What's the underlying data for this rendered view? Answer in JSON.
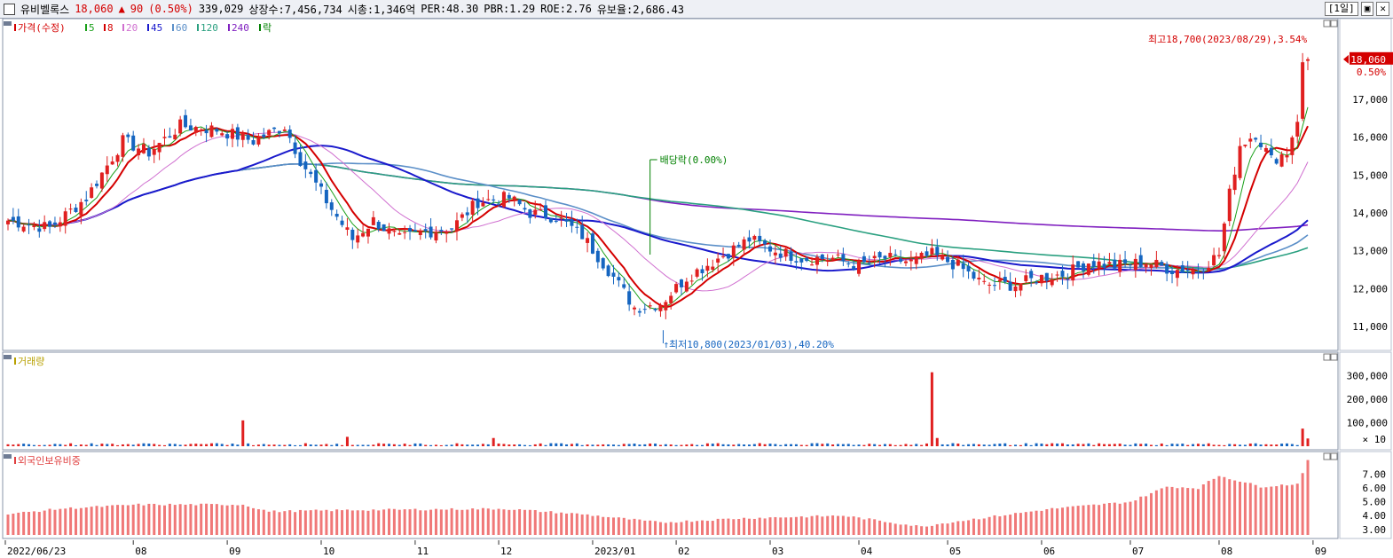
{
  "header": {
    "name": "유비벨록스",
    "price": "18,060",
    "change_arrow": "▲",
    "change": "90",
    "change_pct": "(0.50%)",
    "volume": "339,029",
    "listed": "상장수:7,456,734",
    "mcap": "시총:1,346억",
    "per": "PER:48.30",
    "pbr": "PBR:1.29",
    "roe": "ROE:2.76",
    "float": "유보율:2,686.43",
    "period": "[1일]"
  },
  "panels": {
    "price": {
      "legend": [
        {
          "label": "가격(수정)",
          "color": "#d40000"
        },
        {
          "label": "5",
          "color": "#1aa01a"
        },
        {
          "label": "8",
          "color": "#d40000"
        },
        {
          "label": "20",
          "color": "#d070d0"
        },
        {
          "label": "45",
          "color": "#1a1acc"
        },
        {
          "label": "60",
          "color": "#5b8fc8"
        },
        {
          "label": "120",
          "color": "#2aa080"
        },
        {
          "label": "240",
          "color": "#8020c0"
        },
        {
          "label": "락",
          "color": "#008000"
        }
      ],
      "high_note": "최고18,700(2023/08/29),3.54%",
      "low_note": "최저10,800(2023/01/03),40.20%",
      "dividend_note": "배당락(0.00%)",
      "current_label": "18,060",
      "current_pct": "0.50%",
      "yticks": [
        "17,000",
        "16,000",
        "15,000",
        "14,000",
        "13,000",
        "12,000",
        "11,000"
      ]
    },
    "volume": {
      "legend": "거래량",
      "yticks": [
        "300,000",
        "200,000",
        "100,000"
      ],
      "unit": "× 10"
    },
    "foreign": {
      "legend": "외국인보유비중",
      "yticks": [
        "7.00",
        "6.00",
        "5.00",
        "4.00",
        "3.00"
      ]
    }
  },
  "xaxis": [
    "2022/06/23",
    "08",
    "09",
    "10",
    "11",
    "12",
    "2023/01",
    "02",
    "03",
    "04",
    "05",
    "06",
    "07",
    "08",
    "09"
  ],
  "chart_data": {
    "type": "candlestick",
    "title": "유비벨록스",
    "price_range": [
      10600,
      18900
    ],
    "volume_range": [
      0,
      340000
    ],
    "foreign_range": [
      2.6,
      8.0
    ],
    "price_path": [
      [
        0,
        13800
      ],
      [
        8,
        13600
      ],
      [
        15,
        14400
      ],
      [
        22,
        15900
      ],
      [
        27,
        15600
      ],
      [
        33,
        16300
      ],
      [
        40,
        16200
      ],
      [
        47,
        15900
      ],
      [
        53,
        16300
      ],
      [
        56,
        15400
      ],
      [
        62,
        14100
      ],
      [
        66,
        13300
      ],
      [
        70,
        13800
      ],
      [
        75,
        13300
      ],
      [
        80,
        13500
      ],
      [
        85,
        13600
      ],
      [
        90,
        14300
      ],
      [
        96,
        14400
      ],
      [
        100,
        14000
      ],
      [
        105,
        13900
      ],
      [
        110,
        13400
      ],
      [
        115,
        12500
      ],
      [
        120,
        11500
      ],
      [
        125,
        11600
      ],
      [
        130,
        12300
      ],
      [
        136,
        12800
      ],
      [
        142,
        13300
      ],
      [
        147,
        13000
      ],
      [
        152,
        12800
      ],
      [
        158,
        12800
      ],
      [
        163,
        12600
      ],
      [
        168,
        12800
      ],
      [
        173,
        12700
      ],
      [
        177,
        12900
      ],
      [
        182,
        12600
      ],
      [
        187,
        12100
      ],
      [
        193,
        12100
      ],
      [
        198,
        12300
      ],
      [
        203,
        12400
      ],
      [
        207,
        12700
      ],
      [
        212,
        12600
      ],
      [
        218,
        12700
      ],
      [
        223,
        12500
      ],
      [
        228,
        12500
      ],
      [
        232,
        12900
      ],
      [
        234,
        14500
      ],
      [
        236,
        15800
      ],
      [
        239,
        16100
      ],
      [
        242,
        15400
      ],
      [
        245,
        15600
      ],
      [
        247,
        16500
      ],
      [
        248,
        17900
      ],
      [
        249,
        18060
      ]
    ],
    "volume_spikes": [
      {
        "day": 45,
        "value": 110000
      },
      {
        "day": 65,
        "value": 40000
      },
      {
        "day": 93,
        "value": 35000
      },
      {
        "day": 177,
        "value": 315000
      },
      {
        "day": 178,
        "value": 35000
      },
      {
        "day": 248,
        "value": 75000
      },
      {
        "day": 249,
        "value": 33000
      }
    ],
    "foreign_path": [
      [
        0,
        4.1
      ],
      [
        10,
        4.5
      ],
      [
        25,
        4.8
      ],
      [
        45,
        4.8
      ],
      [
        50,
        4.3
      ],
      [
        65,
        4.4
      ],
      [
        95,
        4.5
      ],
      [
        110,
        4.1
      ],
      [
        125,
        3.5
      ],
      [
        140,
        3.8
      ],
      [
        160,
        4.0
      ],
      [
        175,
        3.2
      ],
      [
        180,
        3.5
      ],
      [
        200,
        4.5
      ],
      [
        215,
        5.0
      ],
      [
        222,
        6.1
      ],
      [
        228,
        6.0
      ],
      [
        232,
        6.9
      ],
      [
        240,
        6.1
      ],
      [
        247,
        6.3
      ],
      [
        249,
        8.0
      ]
    ],
    "ma_last": {
      "5": 16700,
      "8": 16100,
      "20": 15700,
      "45": 14000,
      "60": 13700,
      "120": 13000,
      "240": 13250
    }
  }
}
